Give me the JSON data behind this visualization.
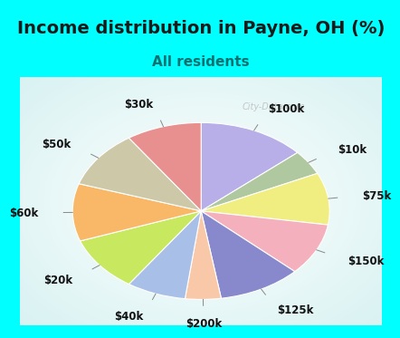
{
  "title": "Income distribution in Payne, OH (%)",
  "subtitle": "All residents",
  "bg_cyan": "#00FFFF",
  "bg_chart": "#d8f0e8",
  "watermark": "City-Data.com",
  "labels": [
    "$100k",
    "$10k",
    "$75k",
    "$150k",
    "$125k",
    "$200k",
    "$40k",
    "$20k",
    "$60k",
    "$50k",
    "$30k"
  ],
  "values": [
    13.5,
    4.5,
    9.5,
    9.5,
    10.5,
    4.5,
    7.5,
    10.0,
    10.5,
    10.5,
    9.5
  ],
  "colors": [
    "#b8aee8",
    "#b0c8a0",
    "#f0ee80",
    "#f4b0bc",
    "#8888cc",
    "#f8c8a8",
    "#a8c0e8",
    "#c8e860",
    "#f8b868",
    "#ccc8a8",
    "#e89090"
  ],
  "startangle": 90,
  "title_fontsize": 14,
  "subtitle_fontsize": 11,
  "subtitle_color": "#007070",
  "label_fontsize": 8.5,
  "title_color": "#1a1a1a"
}
